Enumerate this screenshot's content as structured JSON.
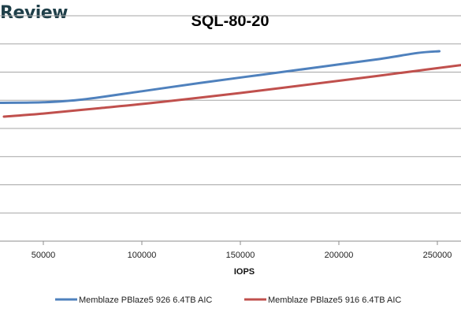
{
  "watermark": "Review",
  "chart_data": {
    "type": "line",
    "title": "SQL-80-20",
    "xlabel": "IOPS",
    "ylabel": "",
    "xlim": [
      28000,
      262000
    ],
    "ylim": [
      0,
      8
    ],
    "x_ticks": [
      50000,
      100000,
      150000,
      200000,
      250000
    ],
    "x_tick_labels": [
      "50000",
      "100000",
      "150000",
      "200000",
      "250000"
    ],
    "y_gridlines": [
      1,
      2,
      3,
      4,
      5,
      6,
      7,
      8
    ],
    "y_tick_labels_visible": false,
    "grid": true,
    "legend_position": "bottom",
    "series": [
      {
        "name": "Memblaze PBlaze5 926 6.4TB AIC",
        "color": "#4f81bd",
        "x": [
          28000,
          50000,
          70000,
          100000,
          130000,
          160000,
          190000,
          220000,
          240000,
          251000
        ],
        "y": [
          4.91,
          4.93,
          5.03,
          5.32,
          5.62,
          5.9,
          6.18,
          6.46,
          6.68,
          6.74
        ]
      },
      {
        "name": "Memblaze PBlaze5 916 6.4TB AIC",
        "color": "#c0504d",
        "x": [
          30000,
          50000,
          80000,
          110000,
          150000,
          180000,
          210000,
          240000,
          262000
        ],
        "y": [
          4.42,
          4.53,
          4.73,
          4.94,
          5.26,
          5.52,
          5.78,
          6.05,
          6.25
        ]
      }
    ]
  }
}
